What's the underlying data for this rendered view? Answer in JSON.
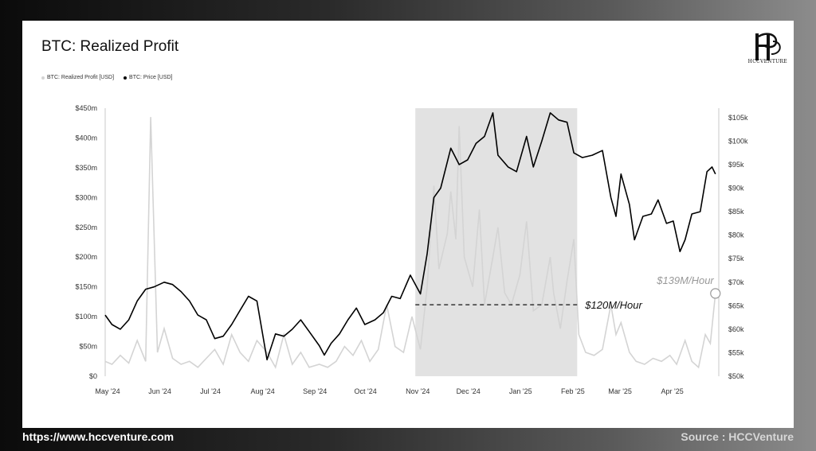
{
  "title": "BTC: Realized Profit",
  "logo_text": "HCCVENTURE",
  "footer": {
    "url": "https://www.hccventure.com",
    "source": "Source : HCCVenture"
  },
  "chart_data": {
    "type": "line",
    "title": "BTC: Realized Profit",
    "legend": [
      {
        "name": "BTC: Realized Profit [USD]",
        "color": "#d4d4d4"
      },
      {
        "name": "BTC: Price [USD]",
        "color": "#000000"
      }
    ],
    "x_ticks": [
      "May '24",
      "Jun '24",
      "Jul '24",
      "Aug '24",
      "Sep '24",
      "Oct '24",
      "Nov '24",
      "Dec '24",
      "Jan '25",
      "Feb '25",
      "Mar '25",
      "Apr '25"
    ],
    "y_left": {
      "ticks": [
        "$0",
        "$50m",
        "$100m",
        "$150m",
        "$200m",
        "$250m",
        "$300m",
        "$350m",
        "$400m",
        "$450m"
      ],
      "ylim": [
        0,
        450
      ]
    },
    "y_right": {
      "ticks": [
        "$50k",
        "$55k",
        "$60k",
        "$65k",
        "$70k",
        "$75k",
        "$80k",
        "$85k",
        "$90k",
        "$95k",
        "$100k",
        "$105k"
      ],
      "ylim": [
        50,
        107
      ]
    },
    "series": [
      {
        "name": "BTC: Price [USD]",
        "axis": "right",
        "color": "#000000",
        "points": [
          [
            "2024-05-01",
            63
          ],
          [
            "2024-05-05",
            61
          ],
          [
            "2024-05-10",
            60
          ],
          [
            "2024-05-15",
            62
          ],
          [
            "2024-05-20",
            66
          ],
          [
            "2024-05-25",
            68.5
          ],
          [
            "2024-05-30",
            69
          ],
          [
            "2024-06-05",
            70
          ],
          [
            "2024-06-10",
            69.5
          ],
          [
            "2024-06-15",
            68
          ],
          [
            "2024-06-20",
            66
          ],
          [
            "2024-06-25",
            63
          ],
          [
            "2024-06-30",
            62
          ],
          [
            "2024-07-05",
            58
          ],
          [
            "2024-07-10",
            58.5
          ],
          [
            "2024-07-15",
            61
          ],
          [
            "2024-07-20",
            64
          ],
          [
            "2024-07-25",
            67
          ],
          [
            "2024-07-30",
            66
          ],
          [
            "2024-08-05",
            53.5
          ],
          [
            "2024-08-10",
            59
          ],
          [
            "2024-08-15",
            58.5
          ],
          [
            "2024-08-20",
            60
          ],
          [
            "2024-08-25",
            62
          ],
          [
            "2024-08-30",
            59.5
          ],
          [
            "2024-09-05",
            56.5
          ],
          [
            "2024-09-08",
            54.5
          ],
          [
            "2024-09-12",
            57
          ],
          [
            "2024-09-17",
            59
          ],
          [
            "2024-09-22",
            62
          ],
          [
            "2024-09-27",
            64.5
          ],
          [
            "2024-10-02",
            61
          ],
          [
            "2024-10-08",
            62
          ],
          [
            "2024-10-13",
            63.5
          ],
          [
            "2024-10-18",
            67
          ],
          [
            "2024-10-23",
            66.5
          ],
          [
            "2024-10-29",
            71.5
          ],
          [
            "2024-11-04",
            67.5
          ],
          [
            "2024-11-08",
            76
          ],
          [
            "2024-11-12",
            88
          ],
          [
            "2024-11-16",
            90
          ],
          [
            "2024-11-22",
            98.5
          ],
          [
            "2024-11-27",
            95
          ],
          [
            "2024-12-02",
            96
          ],
          [
            "2024-12-07",
            99.5
          ],
          [
            "2024-12-12",
            101
          ],
          [
            "2024-12-17",
            106
          ],
          [
            "2024-12-20",
            97
          ],
          [
            "2024-12-26",
            94.5
          ],
          [
            "2024-12-31",
            93.5
          ],
          [
            "2025-01-06",
            101
          ],
          [
            "2025-01-10",
            94.5
          ],
          [
            "2025-01-15",
            100
          ],
          [
            "2025-01-20",
            106
          ],
          [
            "2025-01-25",
            104.5
          ],
          [
            "2025-01-30",
            104
          ],
          [
            "2025-02-03",
            97.5
          ],
          [
            "2025-02-08",
            96.5
          ],
          [
            "2025-02-14",
            97
          ],
          [
            "2025-02-20",
            98
          ],
          [
            "2025-02-25",
            88
          ],
          [
            "2025-02-28",
            84
          ],
          [
            "2025-03-03",
            93
          ],
          [
            "2025-03-08",
            86.5
          ],
          [
            "2025-03-11",
            79
          ],
          [
            "2025-03-16",
            84
          ],
          [
            "2025-03-21",
            84.5
          ],
          [
            "2025-03-25",
            87.5
          ],
          [
            "2025-03-30",
            82.5
          ],
          [
            "2025-04-03",
            83
          ],
          [
            "2025-04-07",
            76.5
          ],
          [
            "2025-04-10",
            79
          ],
          [
            "2025-04-14",
            84.5
          ],
          [
            "2025-04-19",
            85
          ],
          [
            "2025-04-23",
            93.5
          ],
          [
            "2025-04-26",
            94.5
          ],
          [
            "2025-04-28",
            93
          ]
        ]
      },
      {
        "name": "BTC: Realized Profit [USD]",
        "axis": "left",
        "color": "#d4d4d4",
        "points": [
          [
            "2024-05-01",
            25
          ],
          [
            "2024-05-05",
            20
          ],
          [
            "2024-05-10",
            35
          ],
          [
            "2024-05-15",
            22
          ],
          [
            "2024-05-20",
            60
          ],
          [
            "2024-05-25",
            25
          ],
          [
            "2024-05-28",
            435
          ],
          [
            "2024-06-01",
            40
          ],
          [
            "2024-06-05",
            80
          ],
          [
            "2024-06-10",
            30
          ],
          [
            "2024-06-15",
            20
          ],
          [
            "2024-06-20",
            25
          ],
          [
            "2024-06-25",
            15
          ],
          [
            "2024-06-30",
            30
          ],
          [
            "2024-07-05",
            45
          ],
          [
            "2024-07-10",
            20
          ],
          [
            "2024-07-15",
            70
          ],
          [
            "2024-07-20",
            40
          ],
          [
            "2024-07-25",
            25
          ],
          [
            "2024-07-30",
            60
          ],
          [
            "2024-08-05",
            40
          ],
          [
            "2024-08-10",
            15
          ],
          [
            "2024-08-15",
            70
          ],
          [
            "2024-08-20",
            20
          ],
          [
            "2024-08-25",
            40
          ],
          [
            "2024-08-30",
            15
          ],
          [
            "2024-09-05",
            20
          ],
          [
            "2024-09-10",
            15
          ],
          [
            "2024-09-15",
            25
          ],
          [
            "2024-09-20",
            50
          ],
          [
            "2024-09-25",
            35
          ],
          [
            "2024-09-30",
            60
          ],
          [
            "2024-10-05",
            25
          ],
          [
            "2024-10-10",
            45
          ],
          [
            "2024-10-15",
            120
          ],
          [
            "2024-10-20",
            50
          ],
          [
            "2024-10-25",
            40
          ],
          [
            "2024-10-30",
            100
          ],
          [
            "2024-11-04",
            45
          ],
          [
            "2024-11-08",
            150
          ],
          [
            "2024-11-12",
            320
          ],
          [
            "2024-11-15",
            180
          ],
          [
            "2024-11-20",
            240
          ],
          [
            "2024-11-22",
            310
          ],
          [
            "2024-11-25",
            230
          ],
          [
            "2024-11-27",
            420
          ],
          [
            "2024-11-30",
            200
          ],
          [
            "2024-12-05",
            150
          ],
          [
            "2024-12-09",
            280
          ],
          [
            "2024-12-12",
            120
          ],
          [
            "2024-12-17",
            200
          ],
          [
            "2024-12-20",
            250
          ],
          [
            "2024-12-24",
            140
          ],
          [
            "2024-12-28",
            120
          ],
          [
            "2025-01-02",
            170
          ],
          [
            "2025-01-06",
            260
          ],
          [
            "2025-01-10",
            110
          ],
          [
            "2025-01-15",
            120
          ],
          [
            "2025-01-20",
            200
          ],
          [
            "2025-01-22",
            140
          ],
          [
            "2025-01-26",
            80
          ],
          [
            "2025-01-30",
            160
          ],
          [
            "2025-02-03",
            230
          ],
          [
            "2025-02-06",
            70
          ],
          [
            "2025-02-10",
            40
          ],
          [
            "2025-02-15",
            35
          ],
          [
            "2025-02-20",
            45
          ],
          [
            "2025-02-25",
            120
          ],
          [
            "2025-02-28",
            70
          ],
          [
            "2025-03-03",
            90
          ],
          [
            "2025-03-08",
            40
          ],
          [
            "2025-03-12",
            25
          ],
          [
            "2025-03-17",
            20
          ],
          [
            "2025-03-22",
            30
          ],
          [
            "2025-03-27",
            25
          ],
          [
            "2025-04-01",
            35
          ],
          [
            "2025-04-05",
            20
          ],
          [
            "2025-04-10",
            60
          ],
          [
            "2025-04-14",
            25
          ],
          [
            "2025-04-18",
            15
          ],
          [
            "2025-04-22",
            70
          ],
          [
            "2025-04-25",
            55
          ],
          [
            "2025-04-28",
            139
          ]
        ]
      }
    ],
    "highlight_range": [
      "2024-11-01",
      "2025-02-05"
    ],
    "reference_line": {
      "value": 120,
      "label": "$120M/Hour",
      "axis": "left"
    },
    "latest_marker": {
      "date": "2025-04-28",
      "value": 139,
      "label": "$139M/Hour",
      "axis": "left"
    },
    "grid": false
  }
}
